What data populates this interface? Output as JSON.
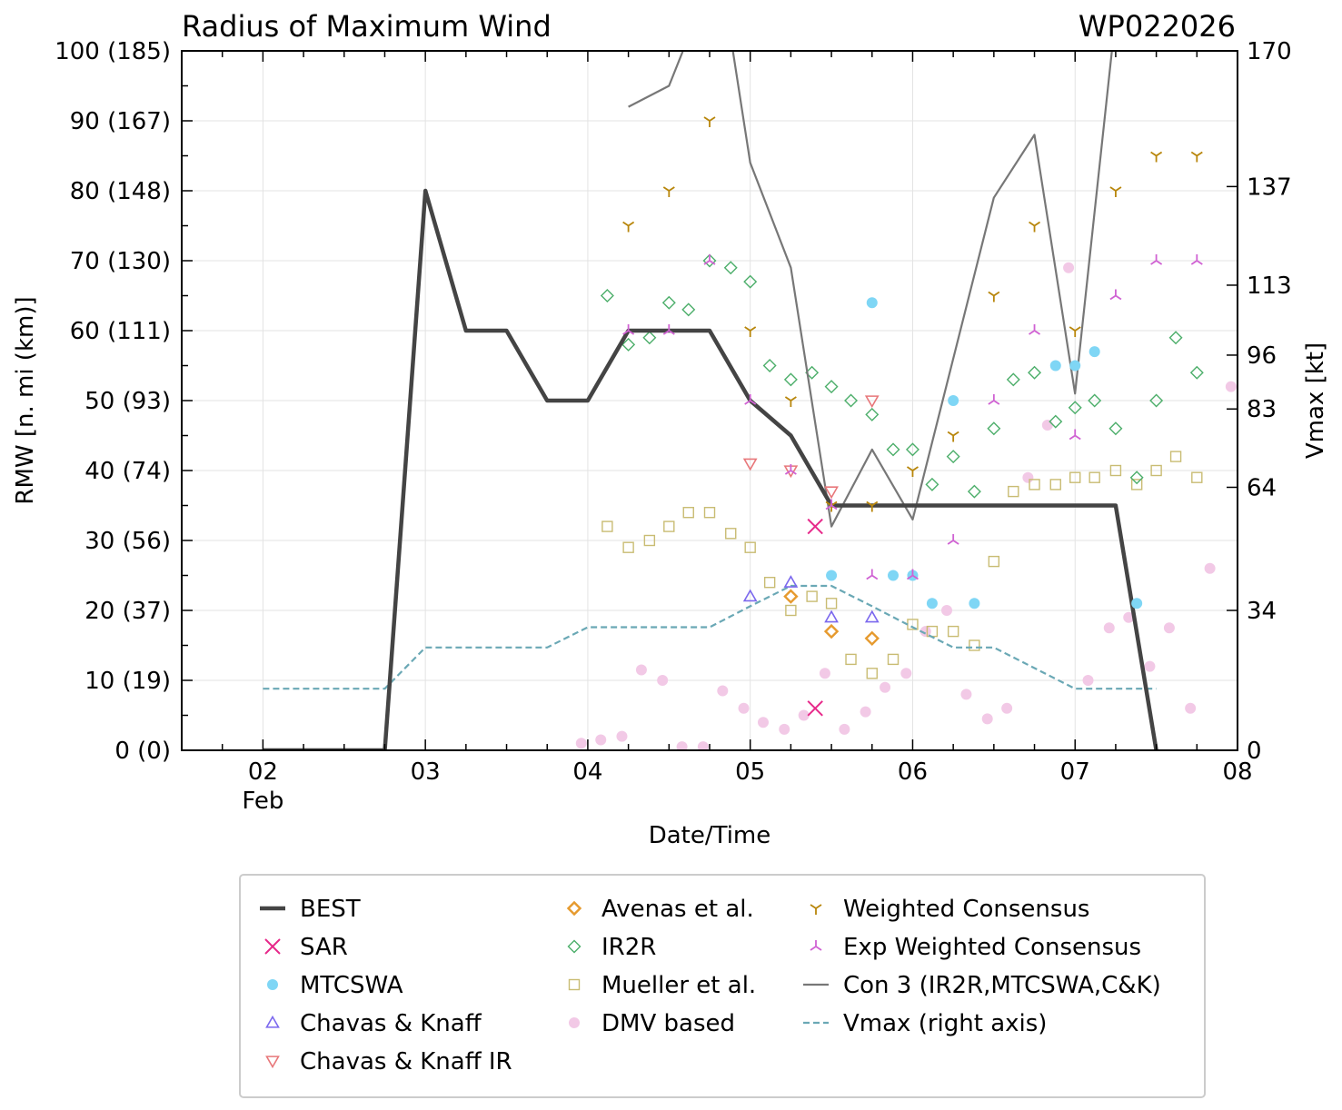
{
  "chart_data": {
    "type": "scatter",
    "title": "Radius of Maximum Wind",
    "storm_id": "WP022026",
    "xlabel": "Date/Time",
    "ylabel": "RMW [n. mi (km)]",
    "ylabel_right": "Vmax [kt]",
    "xlim": [
      1.5,
      8.0
    ],
    "ylim": [
      0,
      100
    ],
    "x_ticks": [
      {
        "x": 2,
        "label": "02",
        "sub": "Feb"
      },
      {
        "x": 3,
        "label": "03",
        "sub": ""
      },
      {
        "x": 4,
        "label": "04",
        "sub": ""
      },
      {
        "x": 5,
        "label": "05",
        "sub": ""
      },
      {
        "x": 6,
        "label": "06",
        "sub": ""
      },
      {
        "x": 7,
        "label": "07",
        "sub": ""
      },
      {
        "x": 8,
        "label": "08",
        "sub": ""
      }
    ],
    "y_ticks": [
      {
        "v": 0,
        "label": "0 (0)"
      },
      {
        "v": 10,
        "label": "10 (19)"
      },
      {
        "v": 20,
        "label": "20 (37)"
      },
      {
        "v": 30,
        "label": "30 (56)"
      },
      {
        "v": 40,
        "label": "40 (74)"
      },
      {
        "v": 50,
        "label": "50 (93)"
      },
      {
        "v": 60,
        "label": "60 (111)"
      },
      {
        "v": 70,
        "label": "70 (130)"
      },
      {
        "v": 80,
        "label": "80 (148)"
      },
      {
        "v": 90,
        "label": "90 (167)"
      },
      {
        "v": 100,
        "label": "100 (185)"
      }
    ],
    "y2_ticks": [
      {
        "v": 0,
        "label": "0"
      },
      {
        "v": 20,
        "label": "34"
      },
      {
        "v": 37.6,
        "label": "64"
      },
      {
        "v": 48.8,
        "label": "83"
      },
      {
        "v": 56.5,
        "label": "96"
      },
      {
        "v": 66.5,
        "label": "113"
      },
      {
        "v": 80.6,
        "label": "137"
      },
      {
        "v": 100,
        "label": "170"
      }
    ],
    "series": [
      {
        "name": "BEST",
        "marker": "line",
        "color": "#444444",
        "points": [
          [
            2,
            0
          ],
          [
            2.75,
            0
          ],
          [
            3,
            80
          ],
          [
            3.25,
            60
          ],
          [
            3.5,
            60
          ],
          [
            3.75,
            50
          ],
          [
            4,
            50
          ],
          [
            4.25,
            60
          ],
          [
            4.5,
            60
          ],
          [
            4.75,
            60
          ],
          [
            5,
            50
          ],
          [
            5.25,
            45
          ],
          [
            5.5,
            35
          ],
          [
            5.75,
            35
          ],
          [
            6,
            35
          ],
          [
            6.25,
            35
          ],
          [
            6.5,
            35
          ],
          [
            6.75,
            35
          ],
          [
            7,
            35
          ],
          [
            7.25,
            35
          ],
          [
            7.5,
            0
          ]
        ]
      },
      {
        "name": "SAR",
        "marker": "x",
        "color": "#e7298a",
        "points": [
          [
            5.4,
            32
          ],
          [
            5.4,
            6
          ]
        ]
      },
      {
        "name": "MTCSWA",
        "marker": "dot",
        "color": "#7fd6f5",
        "points": [
          [
            5.5,
            25
          ],
          [
            5.75,
            64
          ],
          [
            5.88,
            25
          ],
          [
            6,
            25
          ],
          [
            6.12,
            21
          ],
          [
            6.25,
            50
          ],
          [
            6.38,
            21
          ],
          [
            6.88,
            55
          ],
          [
            7,
            55
          ],
          [
            7.12,
            57
          ],
          [
            7.38,
            21
          ]
        ]
      },
      {
        "name": "Chavas & Knaff",
        "marker": "triangle-up",
        "color": "#7b68ee",
        "points": [
          [
            5,
            22
          ],
          [
            5.25,
            24
          ],
          [
            5.5,
            19
          ],
          [
            5.75,
            19
          ]
        ]
      },
      {
        "name": "Chavas & Knaff IR",
        "marker": "triangle-down",
        "color": "#e8777a",
        "points": [
          [
            5,
            41
          ],
          [
            5.25,
            40
          ],
          [
            5.5,
            37
          ],
          [
            5.75,
            50
          ]
        ]
      },
      {
        "name": "Avenas et al.",
        "marker": "diamond",
        "color": "#e69a2e",
        "points": [
          [
            5.25,
            22
          ],
          [
            5.5,
            17
          ],
          [
            5.75,
            16
          ]
        ]
      },
      {
        "name": "IR2R",
        "marker": "diamond-open",
        "color": "#4cae6a",
        "points": [
          [
            4.12,
            65
          ],
          [
            4.25,
            58
          ],
          [
            4.38,
            59
          ],
          [
            4.5,
            64
          ],
          [
            4.62,
            63
          ],
          [
            4.75,
            70
          ],
          [
            4.88,
            69
          ],
          [
            5,
            67
          ],
          [
            5.12,
            55
          ],
          [
            5.25,
            53
          ],
          [
            5.38,
            54
          ],
          [
            5.5,
            52
          ],
          [
            5.62,
            50
          ],
          [
            5.75,
            48
          ],
          [
            5.88,
            43
          ],
          [
            6,
            43
          ],
          [
            6.12,
            38
          ],
          [
            6.25,
            42
          ],
          [
            6.38,
            37
          ],
          [
            6.5,
            46
          ],
          [
            6.62,
            53
          ],
          [
            6.75,
            54
          ],
          [
            6.88,
            47
          ],
          [
            7,
            49
          ],
          [
            7.12,
            50
          ],
          [
            7.25,
            46
          ],
          [
            7.38,
            39
          ],
          [
            7.5,
            50
          ],
          [
            7.62,
            59
          ],
          [
            7.75,
            54
          ]
        ]
      },
      {
        "name": "Mueller et al.",
        "marker": "square",
        "color": "#c9bc73",
        "points": [
          [
            4.12,
            32
          ],
          [
            4.25,
            29
          ],
          [
            4.38,
            30
          ],
          [
            4.5,
            32
          ],
          [
            4.62,
            34
          ],
          [
            4.75,
            34
          ],
          [
            4.88,
            31
          ],
          [
            5,
            29
          ],
          [
            5.12,
            24
          ],
          [
            5.25,
            20
          ],
          [
            5.38,
            22
          ],
          [
            5.5,
            21
          ],
          [
            5.62,
            13
          ],
          [
            5.75,
            11
          ],
          [
            5.88,
            13
          ],
          [
            6,
            18
          ],
          [
            6.12,
            17
          ],
          [
            6.25,
            17
          ],
          [
            6.38,
            15
          ],
          [
            6.5,
            27
          ],
          [
            6.62,
            37
          ],
          [
            6.75,
            38
          ],
          [
            6.88,
            38
          ],
          [
            7,
            39
          ],
          [
            7.12,
            39
          ],
          [
            7.25,
            40
          ],
          [
            7.38,
            38
          ],
          [
            7.5,
            40
          ],
          [
            7.62,
            42
          ],
          [
            7.75,
            39
          ]
        ]
      },
      {
        "name": "DMV based",
        "marker": "dot",
        "color": "#f2c9e6",
        "points": [
          [
            3.96,
            1
          ],
          [
            4.08,
            1.5
          ],
          [
            4.21,
            2
          ],
          [
            4.33,
            11.5
          ],
          [
            4.46,
            10
          ],
          [
            4.58,
            0.5
          ],
          [
            4.71,
            0.5
          ],
          [
            4.83,
            8.5
          ],
          [
            4.96,
            6
          ],
          [
            5.08,
            4
          ],
          [
            5.21,
            3
          ],
          [
            5.33,
            5
          ],
          [
            5.46,
            11
          ],
          [
            5.58,
            3
          ],
          [
            5.71,
            5.5
          ],
          [
            5.83,
            9
          ],
          [
            5.96,
            11
          ],
          [
            6.08,
            17
          ],
          [
            6.21,
            20
          ],
          [
            6.33,
            8
          ],
          [
            6.46,
            4.5
          ],
          [
            6.58,
            6
          ],
          [
            6.71,
            39
          ],
          [
            6.83,
            46.5
          ],
          [
            6.96,
            69
          ],
          [
            7.08,
            10
          ],
          [
            7.21,
            17.5
          ],
          [
            7.33,
            19
          ],
          [
            7.46,
            12
          ],
          [
            7.58,
            17.5
          ],
          [
            7.71,
            6
          ],
          [
            7.83,
            26
          ],
          [
            7.96,
            52
          ]
        ]
      },
      {
        "name": "Weighted Consensus",
        "marker": "tri-down",
        "color": "#b8860b",
        "points": [
          [
            4.25,
            75
          ],
          [
            4.5,
            80
          ],
          [
            4.75,
            90
          ],
          [
            5,
            60
          ],
          [
            5.25,
            50
          ],
          [
            5.5,
            35
          ],
          [
            5.75,
            35
          ],
          [
            6,
            40
          ],
          [
            6.25,
            45
          ],
          [
            6.5,
            65
          ],
          [
            6.75,
            75
          ],
          [
            7,
            60
          ],
          [
            7.25,
            80
          ],
          [
            7.5,
            85
          ],
          [
            7.75,
            85
          ]
        ]
      },
      {
        "name": "Exp Weighted Consensus",
        "marker": "tri-up",
        "color": "#d062d3",
        "points": [
          [
            4.25,
            60
          ],
          [
            4.5,
            60
          ],
          [
            4.75,
            70
          ],
          [
            5,
            50
          ],
          [
            5.25,
            40
          ],
          [
            5.5,
            35
          ],
          [
            5.75,
            25
          ],
          [
            6,
            25
          ],
          [
            6.25,
            30
          ],
          [
            6.5,
            50
          ],
          [
            6.75,
            60
          ],
          [
            7,
            45
          ],
          [
            7.25,
            65
          ],
          [
            7.5,
            70
          ],
          [
            7.75,
            70
          ]
        ]
      },
      {
        "name": "Con 3 (IR2R,MTCSWA,C&K)",
        "marker": "line",
        "color": "#777777",
        "points": [
          [
            4.25,
            92
          ],
          [
            4.5,
            95
          ],
          [
            4.62,
            102
          ],
          [
            4.88,
            102
          ],
          [
            5,
            84
          ],
          [
            5.25,
            69
          ],
          [
            5.5,
            32
          ],
          [
            5.75,
            43
          ],
          [
            6,
            33
          ],
          [
            6.5,
            79
          ],
          [
            6.75,
            88
          ],
          [
            7,
            51
          ],
          [
            7.25,
            105
          ]
        ]
      },
      {
        "name": "Vmax (right axis)",
        "marker": "dashed",
        "color": "#6aa8b5",
        "points": [
          [
            2,
            8.8
          ],
          [
            2.75,
            8.8
          ],
          [
            3,
            14.7
          ],
          [
            3.75,
            14.7
          ],
          [
            4,
            17.6
          ],
          [
            4.75,
            17.6
          ],
          [
            5,
            20.6
          ],
          [
            5.25,
            23.5
          ],
          [
            5.5,
            23.5
          ],
          [
            5.75,
            20.6
          ],
          [
            6,
            17.6
          ],
          [
            6.25,
            14.7
          ],
          [
            6.5,
            14.7
          ],
          [
            7,
            8.8
          ],
          [
            7.5,
            8.8
          ]
        ]
      }
    ],
    "legend": {
      "placement": "bottom-center"
    }
  }
}
